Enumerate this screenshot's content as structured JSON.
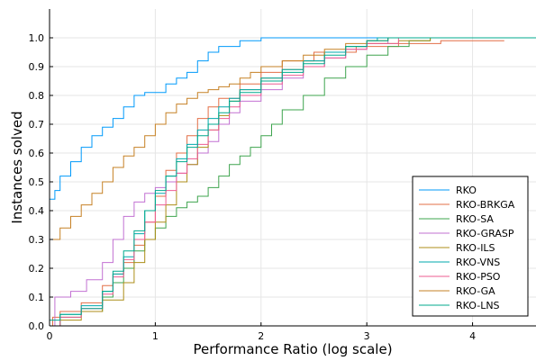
{
  "chart_data": {
    "type": "line",
    "xlabel": "Performance Ratio (log scale)",
    "ylabel": "Instances solved",
    "xlim": [
      0,
      4.6
    ],
    "ylim": [
      0,
      1.1
    ],
    "x_ticks": [
      "0",
      "1",
      "2",
      "3",
      "4"
    ],
    "y_ticks": [
      "0.0",
      "0.1",
      "0.2",
      "0.3",
      "0.4",
      "0.5",
      "0.6",
      "0.7",
      "0.8",
      "0.9",
      "1.0"
    ],
    "grid": true,
    "legend_position": "bottom-right",
    "series": [
      {
        "name": "RKO",
        "color": "#009AFA",
        "points": [
          [
            0,
            0.44
          ],
          [
            0.05,
            0.47
          ],
          [
            0.1,
            0.52
          ],
          [
            0.2,
            0.57
          ],
          [
            0.3,
            0.62
          ],
          [
            0.4,
            0.66
          ],
          [
            0.5,
            0.69
          ],
          [
            0.6,
            0.72
          ],
          [
            0.7,
            0.76
          ],
          [
            0.8,
            0.8
          ],
          [
            0.9,
            0.81
          ],
          [
            1.0,
            0.81
          ],
          [
            1.1,
            0.84
          ],
          [
            1.2,
            0.86
          ],
          [
            1.3,
            0.88
          ],
          [
            1.4,
            0.92
          ],
          [
            1.5,
            0.95
          ],
          [
            1.6,
            0.97
          ],
          [
            1.8,
            0.99
          ],
          [
            2.0,
            1.0
          ],
          [
            4.6,
            1.0
          ]
        ]
      },
      {
        "name": "RKO-BRKGA",
        "color": "#E36F47",
        "points": [
          [
            0,
            0.0
          ],
          [
            0.03,
            0.03
          ],
          [
            0.1,
            0.05
          ],
          [
            0.3,
            0.08
          ],
          [
            0.5,
            0.14
          ],
          [
            0.6,
            0.18
          ],
          [
            0.7,
            0.22
          ],
          [
            0.8,
            0.28
          ],
          [
            0.9,
            0.36
          ],
          [
            1.0,
            0.45
          ],
          [
            1.1,
            0.54
          ],
          [
            1.2,
            0.6
          ],
          [
            1.3,
            0.66
          ],
          [
            1.4,
            0.72
          ],
          [
            1.5,
            0.76
          ],
          [
            1.6,
            0.79
          ],
          [
            1.8,
            0.84
          ],
          [
            2.0,
            0.88
          ],
          [
            2.2,
            0.92
          ],
          [
            2.5,
            0.95
          ],
          [
            2.9,
            0.97
          ],
          [
            3.3,
            0.98
          ],
          [
            3.7,
            0.99
          ],
          [
            4.3,
            0.99
          ]
        ]
      },
      {
        "name": "RKO-SA",
        "color": "#3EA44E",
        "points": [
          [
            0,
            0.0
          ],
          [
            0.1,
            0.03
          ],
          [
            0.3,
            0.05
          ],
          [
            0.5,
            0.1
          ],
          [
            0.6,
            0.15
          ],
          [
            0.7,
            0.2
          ],
          [
            0.8,
            0.26
          ],
          [
            0.9,
            0.3
          ],
          [
            1.0,
            0.34
          ],
          [
            1.1,
            0.38
          ],
          [
            1.2,
            0.41
          ],
          [
            1.3,
            0.43
          ],
          [
            1.4,
            0.45
          ],
          [
            1.5,
            0.48
          ],
          [
            1.6,
            0.52
          ],
          [
            1.7,
            0.56
          ],
          [
            1.8,
            0.59
          ],
          [
            1.9,
            0.62
          ],
          [
            2.0,
            0.66
          ],
          [
            2.1,
            0.7
          ],
          [
            2.2,
            0.75
          ],
          [
            2.4,
            0.8
          ],
          [
            2.6,
            0.86
          ],
          [
            2.8,
            0.9
          ],
          [
            3.0,
            0.94
          ],
          [
            3.2,
            0.97
          ],
          [
            3.4,
            0.99
          ],
          [
            3.6,
            1.0
          ],
          [
            4.6,
            1.0
          ]
        ]
      },
      {
        "name": "RKO-GRASP",
        "color": "#C271D2",
        "points": [
          [
            0,
            0.0
          ],
          [
            0.05,
            0.1
          ],
          [
            0.2,
            0.12
          ],
          [
            0.35,
            0.16
          ],
          [
            0.5,
            0.22
          ],
          [
            0.6,
            0.3
          ],
          [
            0.7,
            0.38
          ],
          [
            0.8,
            0.43
          ],
          [
            0.9,
            0.46
          ],
          [
            1.0,
            0.48
          ],
          [
            1.1,
            0.5
          ],
          [
            1.2,
            0.53
          ],
          [
            1.3,
            0.56
          ],
          [
            1.4,
            0.6
          ],
          [
            1.5,
            0.64
          ],
          [
            1.6,
            0.7
          ],
          [
            1.7,
            0.74
          ],
          [
            1.8,
            0.78
          ],
          [
            2.0,
            0.82
          ],
          [
            2.2,
            0.86
          ],
          [
            2.4,
            0.9
          ],
          [
            2.6,
            0.93
          ],
          [
            2.8,
            0.96
          ],
          [
            3.0,
            0.98
          ],
          [
            3.2,
            1.0
          ],
          [
            4.6,
            1.0
          ]
        ]
      },
      {
        "name": "RKO-ILS",
        "color": "#AC8E18",
        "points": [
          [
            0,
            0.0
          ],
          [
            0.1,
            0.02
          ],
          [
            0.3,
            0.05
          ],
          [
            0.5,
            0.09
          ],
          [
            0.7,
            0.15
          ],
          [
            0.8,
            0.22
          ],
          [
            0.9,
            0.3
          ],
          [
            1.0,
            0.36
          ],
          [
            1.1,
            0.42
          ],
          [
            1.2,
            0.5
          ],
          [
            1.3,
            0.56
          ],
          [
            1.4,
            0.62
          ],
          [
            1.5,
            0.68
          ],
          [
            1.6,
            0.73
          ],
          [
            1.7,
            0.78
          ],
          [
            1.8,
            0.82
          ],
          [
            2.0,
            0.86
          ],
          [
            2.2,
            0.89
          ],
          [
            2.4,
            0.92
          ],
          [
            2.6,
            0.95
          ],
          [
            2.8,
            0.97
          ],
          [
            3.0,
            0.98
          ],
          [
            3.3,
            0.99
          ],
          [
            3.6,
            1.0
          ],
          [
            4.6,
            1.0
          ]
        ]
      },
      {
        "name": "RKO-VNS",
        "color": "#00A9AD",
        "points": [
          [
            0,
            0.0
          ],
          [
            0.1,
            0.04
          ],
          [
            0.3,
            0.07
          ],
          [
            0.5,
            0.12
          ],
          [
            0.6,
            0.18
          ],
          [
            0.7,
            0.24
          ],
          [
            0.8,
            0.32
          ],
          [
            0.9,
            0.4
          ],
          [
            1.0,
            0.46
          ],
          [
            1.1,
            0.52
          ],
          [
            1.2,
            0.58
          ],
          [
            1.3,
            0.63
          ],
          [
            1.4,
            0.68
          ],
          [
            1.5,
            0.72
          ],
          [
            1.6,
            0.76
          ],
          [
            1.7,
            0.79
          ],
          [
            1.8,
            0.82
          ],
          [
            2.0,
            0.86
          ],
          [
            2.2,
            0.89
          ],
          [
            2.4,
            0.92
          ],
          [
            2.6,
            0.95
          ],
          [
            2.8,
            0.97
          ],
          [
            3.0,
            0.99
          ],
          [
            3.1,
            1.0
          ],
          [
            4.6,
            1.0
          ]
        ]
      },
      {
        "name": "RKO-PSO",
        "color": "#ED5D92",
        "points": [
          [
            0,
            0.0
          ],
          [
            0.1,
            0.03
          ],
          [
            0.3,
            0.06
          ],
          [
            0.5,
            0.11
          ],
          [
            0.6,
            0.17
          ],
          [
            0.7,
            0.23
          ],
          [
            0.8,
            0.3
          ],
          [
            0.9,
            0.36
          ],
          [
            1.0,
            0.42
          ],
          [
            1.1,
            0.47
          ],
          [
            1.2,
            0.53
          ],
          [
            1.3,
            0.58
          ],
          [
            1.4,
            0.63
          ],
          [
            1.5,
            0.68
          ],
          [
            1.6,
            0.72
          ],
          [
            1.7,
            0.76
          ],
          [
            1.8,
            0.8
          ],
          [
            2.0,
            0.84
          ],
          [
            2.2,
            0.87
          ],
          [
            2.4,
            0.9
          ],
          [
            2.6,
            0.93
          ],
          [
            2.8,
            0.96
          ],
          [
            3.0,
            0.98
          ],
          [
            3.3,
            1.0
          ],
          [
            4.6,
            1.0
          ]
        ]
      },
      {
        "name": "RKO-GA",
        "color": "#C68125",
        "points": [
          [
            0,
            0.3
          ],
          [
            0.1,
            0.34
          ],
          [
            0.2,
            0.38
          ],
          [
            0.3,
            0.42
          ],
          [
            0.4,
            0.46
          ],
          [
            0.5,
            0.5
          ],
          [
            0.6,
            0.55
          ],
          [
            0.7,
            0.59
          ],
          [
            0.8,
            0.62
          ],
          [
            0.9,
            0.66
          ],
          [
            1.0,
            0.7
          ],
          [
            1.1,
            0.74
          ],
          [
            1.2,
            0.77
          ],
          [
            1.3,
            0.79
          ],
          [
            1.4,
            0.81
          ],
          [
            1.5,
            0.82
          ],
          [
            1.6,
            0.83
          ],
          [
            1.7,
            0.84
          ],
          [
            1.8,
            0.86
          ],
          [
            1.9,
            0.88
          ],
          [
            2.0,
            0.9
          ],
          [
            2.2,
            0.92
          ],
          [
            2.4,
            0.94
          ],
          [
            2.6,
            0.96
          ],
          [
            2.8,
            0.98
          ],
          [
            3.0,
            0.99
          ],
          [
            3.2,
            1.0
          ],
          [
            4.6,
            1.0
          ]
        ]
      },
      {
        "name": "RKO-LNS",
        "color": "#00A98D",
        "points": [
          [
            0,
            0.02
          ],
          [
            0.1,
            0.04
          ],
          [
            0.3,
            0.06
          ],
          [
            0.5,
            0.12
          ],
          [
            0.6,
            0.19
          ],
          [
            0.7,
            0.26
          ],
          [
            0.8,
            0.33
          ],
          [
            0.9,
            0.4
          ],
          [
            1.0,
            0.47
          ],
          [
            1.1,
            0.52
          ],
          [
            1.2,
            0.57
          ],
          [
            1.3,
            0.62
          ],
          [
            1.4,
            0.66
          ],
          [
            1.5,
            0.7
          ],
          [
            1.6,
            0.74
          ],
          [
            1.7,
            0.78
          ],
          [
            1.8,
            0.81
          ],
          [
            2.0,
            0.85
          ],
          [
            2.2,
            0.88
          ],
          [
            2.4,
            0.91
          ],
          [
            2.6,
            0.94
          ],
          [
            2.8,
            0.97
          ],
          [
            3.0,
            0.99
          ],
          [
            3.2,
            1.0
          ],
          [
            4.6,
            1.0
          ]
        ]
      }
    ]
  }
}
